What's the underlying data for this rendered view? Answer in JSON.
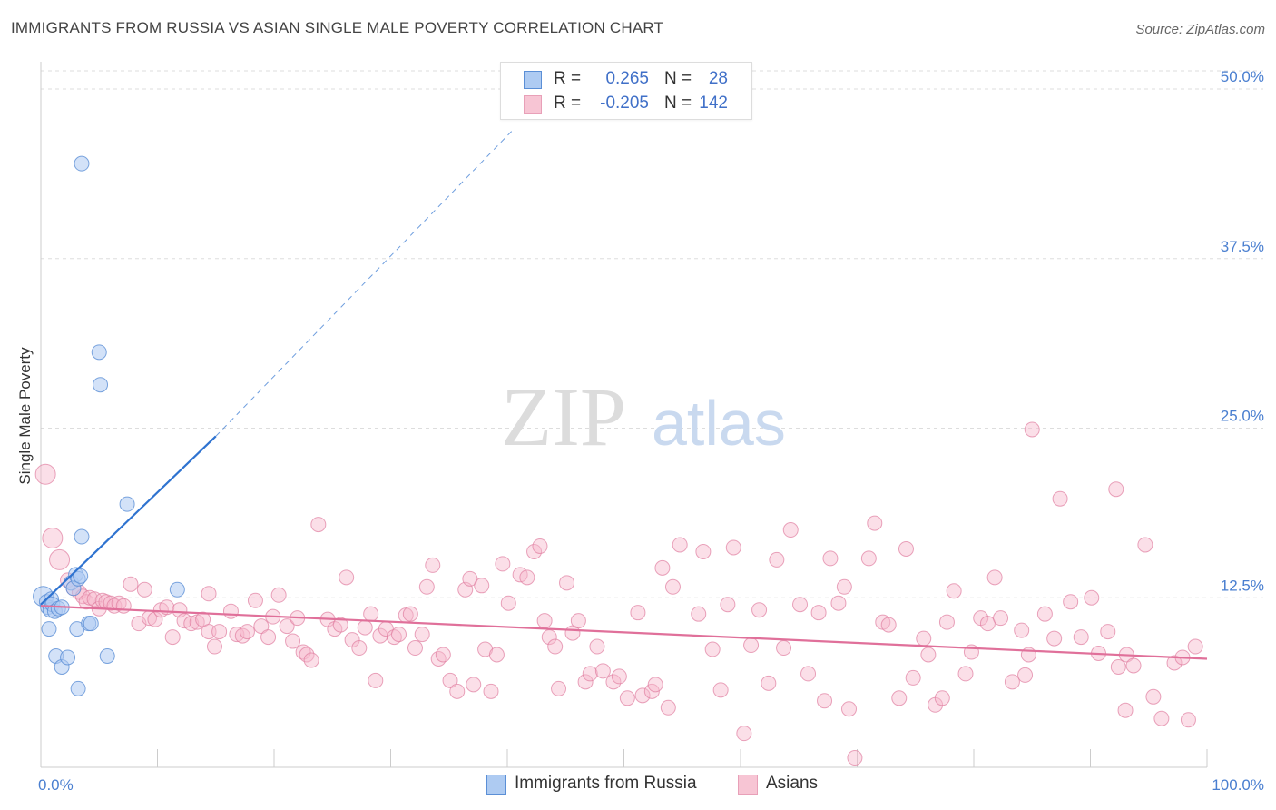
{
  "title": "IMMIGRANTS FROM RUSSIA VS ASIAN SINGLE MALE POVERTY CORRELATION CHART",
  "source": "Source: ZipAtlas.com",
  "watermark": {
    "zip": "ZIP",
    "atlas": "atlas"
  },
  "legend": {
    "r_label": "R =",
    "n_label": "N =",
    "series": [
      {
        "name": "Immigrants from Russia",
        "r": "0.265",
        "n": "28"
      },
      {
        "name": "Asians",
        "r": "-0.205",
        "n": "142"
      }
    ]
  },
  "colors": {
    "blue_fill": "#aecbf2",
    "blue_stroke": "#5b8fd6",
    "blue_line": "#2f73d0",
    "pink_fill": "#f7b8cb",
    "pink_stroke": "#e07ea0",
    "pink_line": "#e0709a",
    "tick_text": "#4a7fd0",
    "grid": "#dddddd"
  },
  "chart_data": {
    "type": "scatter",
    "title": "IMMIGRANTS FROM RUSSIA VS ASIAN SINGLE MALE POVERTY CORRELATION CHART",
    "xlabel": "",
    "ylabel": "Single Male Poverty",
    "xlim": [
      0,
      100
    ],
    "ylim": [
      0,
      50
    ],
    "x_tick_labels": [
      "0.0%",
      "100.0%"
    ],
    "y_ticks": [
      12.5,
      25.0,
      37.5,
      50.0
    ],
    "y_tick_labels": [
      "12.5%",
      "25.0%",
      "37.5%",
      "50.0%"
    ],
    "grid": true,
    "series": [
      {
        "name": "Immigrants from Russia",
        "color": "blue",
        "r": 0.265,
        "n": 28,
        "trend": {
          "x0": 0,
          "y0": 12.0,
          "x_solid_end": 15.0,
          "y_solid_end": 24.4,
          "x_dash_end": 40.5,
          "y_dash_end": 47.0
        },
        "points": [
          [
            0.2,
            12.6,
            3
          ],
          [
            0.5,
            12.2,
            2
          ],
          [
            0.6,
            11.8,
            2
          ],
          [
            0.8,
            11.6,
            2
          ],
          [
            0.9,
            12.4,
            2
          ],
          [
            1.0,
            12.0,
            2
          ],
          [
            1.2,
            11.5,
            2
          ],
          [
            1.5,
            11.7,
            2
          ],
          [
            1.8,
            11.8,
            2
          ],
          [
            0.7,
            10.2,
            2
          ],
          [
            1.3,
            8.2,
            2
          ],
          [
            1.8,
            7.4,
            2
          ],
          [
            2.3,
            8.1,
            2
          ],
          [
            2.6,
            13.6,
            2
          ],
          [
            2.8,
            13.2,
            2
          ],
          [
            3.0,
            14.2,
            2
          ],
          [
            3.2,
            13.9,
            2
          ],
          [
            3.4,
            14.1,
            2
          ],
          [
            3.1,
            10.2,
            2
          ],
          [
            3.2,
            5.8,
            2
          ],
          [
            4.1,
            10.6,
            2
          ],
          [
            4.3,
            10.6,
            2
          ],
          [
            5.7,
            8.2,
            2
          ],
          [
            3.5,
            17.0,
            2
          ],
          [
            7.4,
            19.4,
            2
          ],
          [
            11.7,
            13.1,
            2
          ],
          [
            5.1,
            28.2,
            2
          ],
          [
            5.0,
            30.6,
            2
          ],
          [
            3.5,
            44.5,
            2
          ]
        ]
      },
      {
        "name": "Asians",
        "color": "pink",
        "r": -0.205,
        "n": 142,
        "trend": {
          "x0": 0,
          "y0": 11.9,
          "x1": 100,
          "y1": 8.0
        },
        "points": [
          [
            0.4,
            21.6,
            3
          ],
          [
            1.0,
            16.9,
            3
          ],
          [
            1.6,
            15.3,
            3
          ],
          [
            2.3,
            13.8,
            2
          ],
          [
            2.8,
            13.2,
            2
          ],
          [
            3.3,
            12.9,
            2
          ],
          [
            3.6,
            12.6,
            2
          ],
          [
            3.9,
            12.2,
            2
          ],
          [
            4.2,
            12.5,
            2
          ],
          [
            4.6,
            12.4,
            2
          ],
          [
            5.0,
            11.7,
            2
          ],
          [
            5.3,
            12.3,
            2
          ],
          [
            5.6,
            12.2,
            2
          ],
          [
            6.0,
            12.1,
            2
          ],
          [
            6.3,
            11.9,
            2
          ],
          [
            6.7,
            12.1,
            2
          ],
          [
            7.1,
            11.9,
            2
          ],
          [
            7.7,
            13.5,
            2
          ],
          [
            8.4,
            10.6,
            2
          ],
          [
            8.9,
            13.1,
            2
          ],
          [
            9.3,
            11.0,
            2
          ],
          [
            9.8,
            10.9,
            2
          ],
          [
            10.3,
            11.6,
            2
          ],
          [
            10.8,
            11.8,
            2
          ],
          [
            11.3,
            9.6,
            2
          ],
          [
            11.9,
            11.6,
            2
          ],
          [
            12.3,
            10.8,
            2
          ],
          [
            12.9,
            10.6,
            2
          ],
          [
            13.4,
            10.7,
            2
          ],
          [
            13.9,
            10.9,
            2
          ],
          [
            14.4,
            10.0,
            2
          ],
          [
            14.4,
            12.8,
            2
          ],
          [
            14.9,
            8.9,
            2
          ],
          [
            15.3,
            10.0,
            2
          ],
          [
            16.3,
            11.5,
            2
          ],
          [
            16.8,
            9.8,
            2
          ],
          [
            17.3,
            9.7,
            2
          ],
          [
            17.7,
            10.0,
            2
          ],
          [
            18.4,
            12.3,
            2
          ],
          [
            18.9,
            10.4,
            2
          ],
          [
            19.5,
            9.6,
            2
          ],
          [
            19.9,
            11.1,
            2
          ],
          [
            20.4,
            12.7,
            2
          ],
          [
            21.1,
            10.4,
            2
          ],
          [
            21.6,
            9.3,
            2
          ],
          [
            22.0,
            11.0,
            2
          ],
          [
            22.5,
            8.5,
            2
          ],
          [
            22.8,
            8.3,
            2
          ],
          [
            23.2,
            7.9,
            2
          ],
          [
            23.8,
            17.9,
            2
          ],
          [
            24.6,
            10.9,
            2
          ],
          [
            25.2,
            10.2,
            2
          ],
          [
            25.7,
            10.5,
            2
          ],
          [
            26.2,
            14.0,
            2
          ],
          [
            26.7,
            9.4,
            2
          ],
          [
            27.3,
            8.8,
            2
          ],
          [
            27.8,
            10.3,
            2
          ],
          [
            28.3,
            11.3,
            2
          ],
          [
            28.7,
            6.4,
            2
          ],
          [
            29.1,
            9.7,
            2
          ],
          [
            29.6,
            10.2,
            2
          ],
          [
            30.3,
            9.6,
            2
          ],
          [
            30.7,
            9.8,
            2
          ],
          [
            31.3,
            11.2,
            2
          ],
          [
            31.7,
            11.3,
            2
          ],
          [
            32.1,
            8.8,
            2
          ],
          [
            32.7,
            9.8,
            2
          ],
          [
            33.1,
            13.3,
            2
          ],
          [
            33.6,
            14.9,
            2
          ],
          [
            34.1,
            8.0,
            2
          ],
          [
            34.5,
            8.3,
            2
          ],
          [
            35.1,
            6.4,
            2
          ],
          [
            35.7,
            5.6,
            2
          ],
          [
            36.4,
            13.1,
            2
          ],
          [
            36.8,
            13.9,
            2
          ],
          [
            37.1,
            6.1,
            2
          ],
          [
            37.8,
            13.4,
            2
          ],
          [
            38.1,
            8.7,
            2
          ],
          [
            38.6,
            5.6,
            2
          ],
          [
            39.1,
            8.3,
            2
          ],
          [
            39.6,
            15.0,
            2
          ],
          [
            40.1,
            12.1,
            2
          ],
          [
            41.1,
            14.2,
            2
          ],
          [
            41.7,
            14.0,
            2
          ],
          [
            42.3,
            15.9,
            2
          ],
          [
            42.8,
            16.3,
            2
          ],
          [
            43.2,
            10.8,
            2
          ],
          [
            43.6,
            9.6,
            2
          ],
          [
            44.1,
            8.9,
            2
          ],
          [
            44.4,
            5.8,
            2
          ],
          [
            45.1,
            13.6,
            2
          ],
          [
            45.6,
            9.9,
            2
          ],
          [
            46.1,
            10.8,
            2
          ],
          [
            46.7,
            6.3,
            2
          ],
          [
            47.1,
            6.9,
            2
          ],
          [
            47.7,
            8.9,
            2
          ],
          [
            48.2,
            7.1,
            2
          ],
          [
            49.1,
            6.3,
            2
          ],
          [
            49.6,
            6.7,
            2
          ],
          [
            50.3,
            5.1,
            2
          ],
          [
            51.2,
            11.4,
            2
          ],
          [
            51.6,
            5.3,
            2
          ],
          [
            52.4,
            5.6,
            2
          ],
          [
            52.7,
            6.1,
            2
          ],
          [
            53.3,
            14.7,
            2
          ],
          [
            53.8,
            4.4,
            2
          ],
          [
            54.2,
            13.3,
            2
          ],
          [
            54.8,
            16.4,
            2
          ],
          [
            56.4,
            11.3,
            2
          ],
          [
            56.8,
            15.9,
            2
          ],
          [
            57.6,
            8.7,
            2
          ],
          [
            58.3,
            5.7,
            2
          ],
          [
            58.9,
            12.0,
            2
          ],
          [
            59.4,
            16.2,
            2
          ],
          [
            60.3,
            2.5,
            2
          ],
          [
            60.9,
            9.0,
            2
          ],
          [
            61.6,
            11.6,
            2
          ],
          [
            62.4,
            6.2,
            2
          ],
          [
            63.1,
            15.3,
            2
          ],
          [
            63.7,
            8.8,
            2
          ],
          [
            64.3,
            17.5,
            2
          ],
          [
            65.1,
            12.0,
            2
          ],
          [
            65.8,
            6.9,
            2
          ],
          [
            66.7,
            11.4,
            2
          ],
          [
            67.2,
            4.9,
            2
          ],
          [
            67.7,
            15.4,
            2
          ],
          [
            68.4,
            12.1,
            2
          ],
          [
            68.9,
            13.3,
            2
          ],
          [
            69.3,
            4.3,
            2
          ],
          [
            69.8,
            0.7,
            2
          ],
          [
            71.0,
            15.4,
            2
          ],
          [
            71.5,
            18.0,
            2
          ],
          [
            72.2,
            10.7,
            2
          ],
          [
            72.7,
            10.5,
            2
          ],
          [
            73.6,
            5.1,
            2
          ],
          [
            74.2,
            16.1,
            2
          ],
          [
            74.8,
            6.6,
            2
          ],
          [
            75.7,
            9.5,
            2
          ],
          [
            76.1,
            8.3,
            2
          ],
          [
            76.7,
            4.6,
            2
          ],
          [
            77.3,
            5.1,
            2
          ],
          [
            77.7,
            10.7,
            2
          ],
          [
            78.3,
            13.0,
            2
          ],
          [
            79.3,
            6.9,
            2
          ],
          [
            79.8,
            8.5,
            2
          ],
          [
            80.6,
            11.0,
            2
          ],
          [
            81.2,
            10.6,
            2
          ],
          [
            81.8,
            14.0,
            2
          ],
          [
            82.3,
            11.0,
            2
          ],
          [
            83.3,
            6.3,
            2
          ],
          [
            84.1,
            10.1,
            2
          ],
          [
            84.4,
            6.8,
            2
          ],
          [
            84.7,
            8.3,
            2
          ],
          [
            85.0,
            24.9,
            2
          ],
          [
            86.1,
            11.3,
            2
          ],
          [
            86.9,
            9.5,
            2
          ],
          [
            87.4,
            19.8,
            2
          ],
          [
            88.3,
            12.2,
            2
          ],
          [
            89.2,
            9.6,
            2
          ],
          [
            90.1,
            12.5,
            2
          ],
          [
            90.7,
            8.4,
            2
          ],
          [
            91.5,
            10.0,
            2
          ],
          [
            92.4,
            7.4,
            2
          ],
          [
            93.1,
            8.3,
            2
          ],
          [
            93.7,
            7.5,
            2
          ],
          [
            94.7,
            16.4,
            2
          ],
          [
            95.4,
            5.2,
            2
          ],
          [
            96.1,
            3.6,
            2
          ],
          [
            97.2,
            7.7,
            2
          ],
          [
            97.9,
            8.1,
            2
          ],
          [
            98.4,
            3.5,
            2
          ],
          [
            99.0,
            8.9,
            2
          ],
          [
            92.2,
            20.5,
            2
          ],
          [
            93.0,
            4.2,
            2
          ]
        ]
      }
    ]
  }
}
